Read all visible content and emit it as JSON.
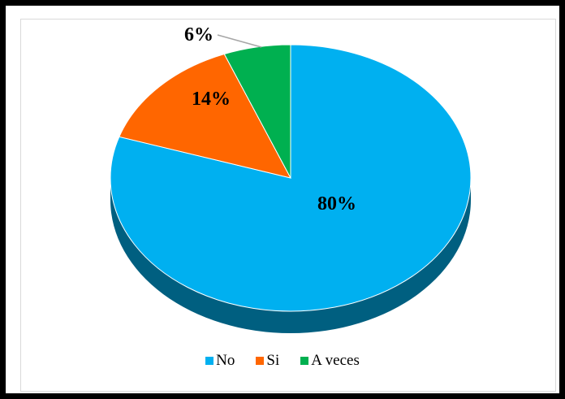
{
  "chart_data": {
    "type": "pie",
    "title": "",
    "labels": [
      "No",
      "Si",
      "A veces"
    ],
    "values": [
      80,
      14,
      6
    ],
    "data_labels": [
      "80%",
      "14%",
      "6%"
    ],
    "colors": [
      "#00b0f0",
      "#ff6600",
      "#00b050"
    ],
    "side_colors": [
      "#005f80",
      "#8a3800",
      "#006530"
    ],
    "legend_position": "bottom",
    "style": "3d"
  }
}
